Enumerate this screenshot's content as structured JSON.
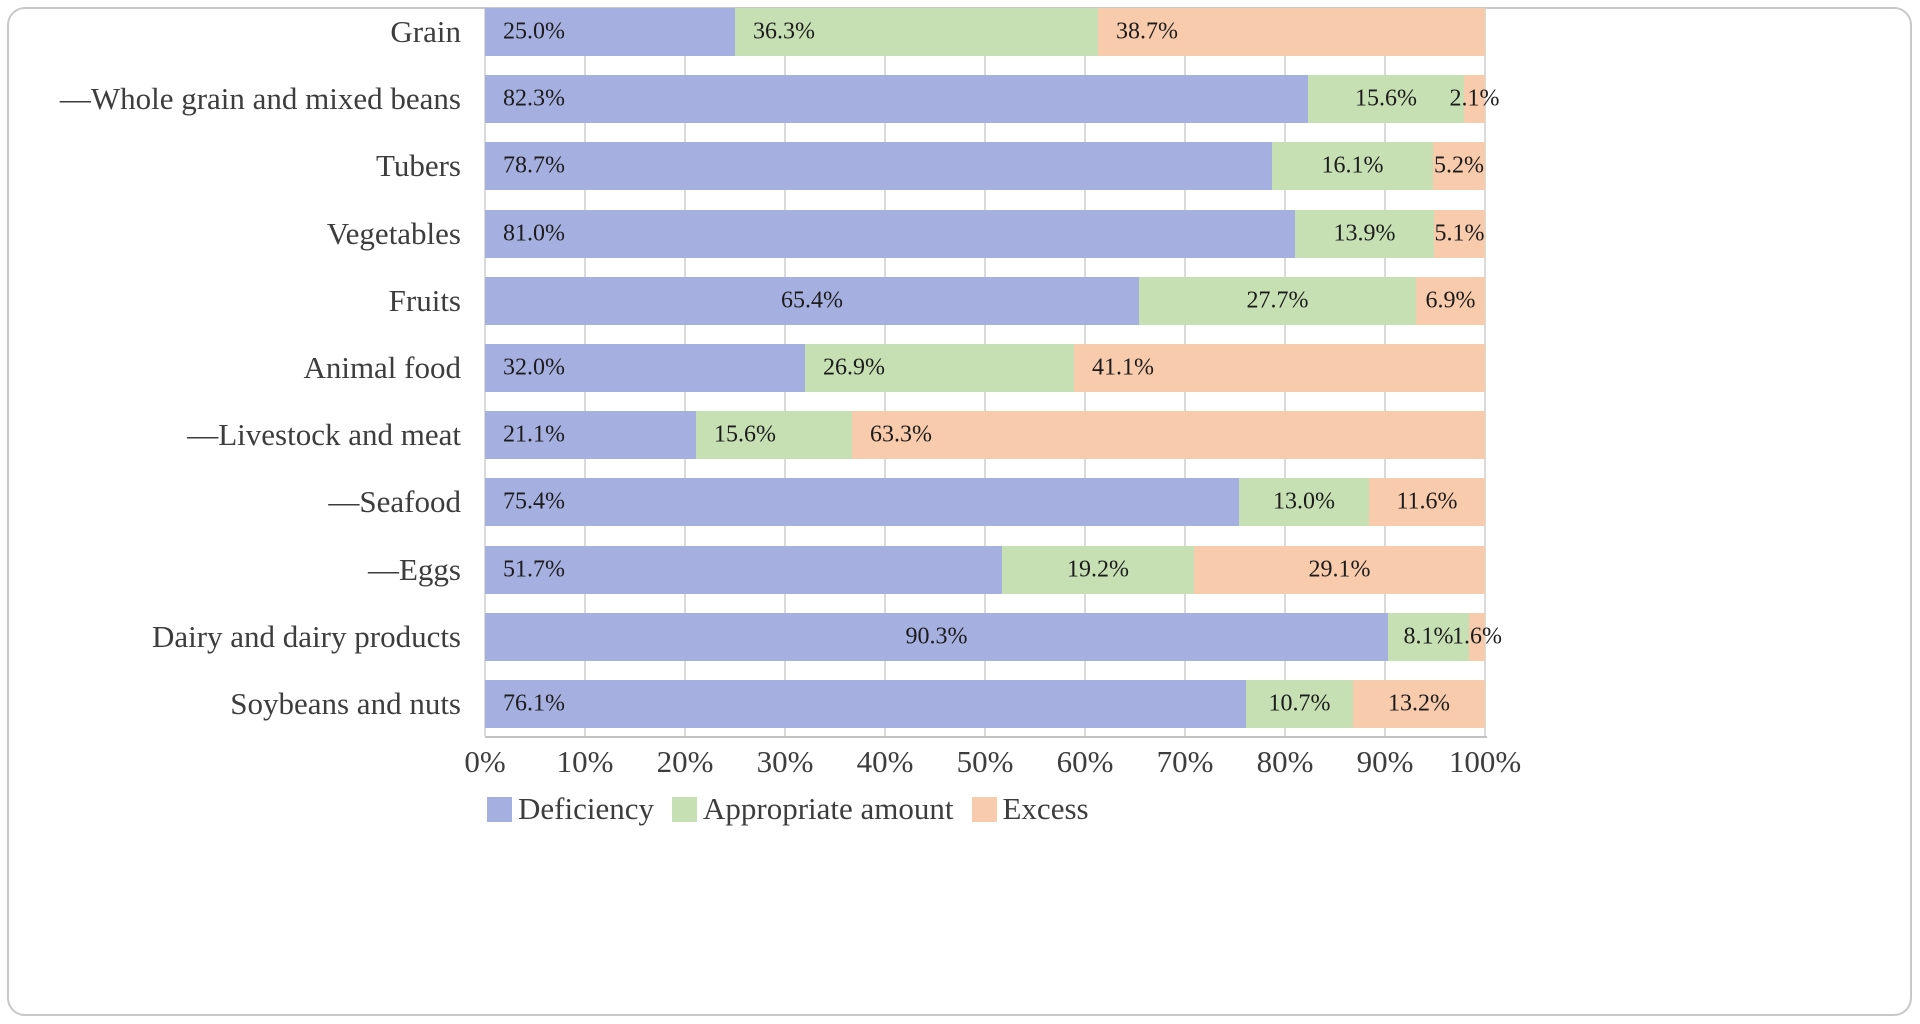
{
  "figure": {
    "background": "#ffffff",
    "border_color": "#c8c8c8"
  },
  "chart_data": {
    "type": "bar",
    "orientation": "horizontal",
    "stacked": true,
    "title": "",
    "xlabel": "",
    "ylabel": "",
    "xlim": [
      0,
      100
    ],
    "x_ticks": [
      "0%",
      "10%",
      "20%",
      "30%",
      "40%",
      "50%",
      "60%",
      "70%",
      "80%",
      "90%",
      "100%"
    ],
    "grid": "vertical",
    "legend_position": "bottom",
    "categories": [
      "Grain",
      "—Whole grain and mixed beans",
      "Tubers",
      "Vegetables",
      "Fruits",
      "Animal food",
      "—Livestock and meat",
      "—Seafood",
      "—Eggs",
      "Dairy and dairy products",
      "Soybeans and nuts"
    ],
    "series": [
      {
        "name": "Deficiency",
        "color": "#a5b0e0",
        "values": [
          25.0,
          82.3,
          78.7,
          81.0,
          65.4,
          32.0,
          21.1,
          75.4,
          51.7,
          90.3,
          76.1
        ],
        "labels": [
          "25.0%",
          "82.3%",
          "78.7%",
          "81.0%",
          "65.4%",
          "32.0%",
          "21.1%",
          "75.4%",
          "51.7%",
          "90.3%",
          "76.1%"
        ],
        "label_align": [
          "base",
          "base",
          "base",
          "base",
          "center",
          "base",
          "base",
          "base",
          "base",
          "center",
          "base"
        ]
      },
      {
        "name": "Appropriate amount",
        "color": "#c6e0b4",
        "values": [
          36.3,
          15.6,
          16.1,
          13.9,
          27.7,
          26.9,
          15.6,
          13.0,
          19.2,
          8.1,
          10.7
        ],
        "labels": [
          "36.3%",
          "15.6%",
          "16.1%",
          "13.9%",
          "27.7%",
          "26.9%",
          "15.6%",
          "13.0%",
          "19.2%",
          "8.1%",
          "10.7%"
        ],
        "label_align": [
          "base",
          "center",
          "center",
          "center",
          "center",
          "base",
          "base",
          "center",
          "center",
          "center",
          "center"
        ]
      },
      {
        "name": "Excess",
        "color": "#f8cbad",
        "values": [
          38.7,
          2.1,
          5.2,
          5.1,
          6.9,
          41.1,
          63.3,
          11.6,
          29.1,
          1.6,
          13.2
        ],
        "labels": [
          "38.7%",
          "2.1%",
          "5.2%",
          "5.1%",
          "6.9%",
          "41.1%",
          "63.3%",
          "11.6%",
          "29.1%",
          "1.6%",
          "13.2%"
        ],
        "label_align": [
          "base",
          "center",
          "center",
          "center",
          "center",
          "base",
          "base",
          "center",
          "center",
          "center",
          "center"
        ]
      }
    ]
  }
}
